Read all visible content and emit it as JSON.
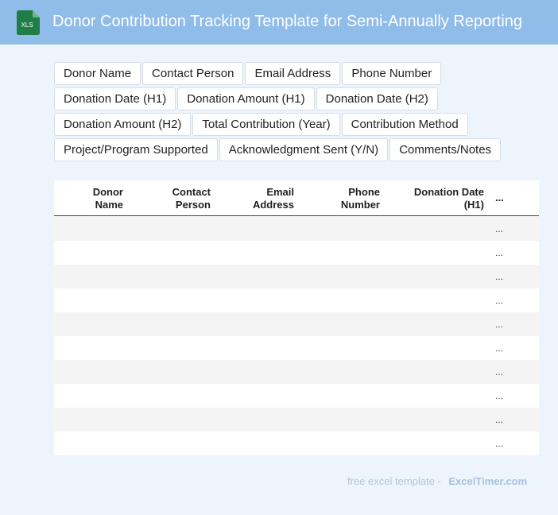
{
  "header": {
    "title": "Donor Contribution Tracking Template for Semi-Annually Reporting",
    "icon": "xls-file-icon",
    "icon_text": "XLS",
    "colors": {
      "bar": "#8fbce9",
      "icon": "#1e7e45"
    }
  },
  "fields": [
    "Donor Name",
    "Contact Person",
    "Email Address",
    "Phone Number",
    "Donation Date (H1)",
    "Donation Amount (H1)",
    "Donation Date (H2)",
    "Donation Amount (H2)",
    "Total Contribution (Year)",
    "Contribution Method",
    "Project/Program Supported",
    "Acknowledgment Sent (Y/N)",
    "Comments/Notes"
  ],
  "table": {
    "headers": [
      {
        "line1": "Donor",
        "line2": "Name"
      },
      {
        "line1": "Contact",
        "line2": "Person"
      },
      {
        "line1": "Email",
        "line2": "Address"
      },
      {
        "line1": "Phone",
        "line2": "Number"
      },
      {
        "line1": "Donation Date",
        "line2": "(H1)"
      }
    ],
    "more_label": "...",
    "row_more": [
      "...",
      "...",
      "...",
      "...",
      "...",
      "...",
      "...",
      "...",
      "...",
      "..."
    ]
  },
  "footer": {
    "prefix": "free excel template -",
    "brand": "ExcelTimer.com"
  }
}
